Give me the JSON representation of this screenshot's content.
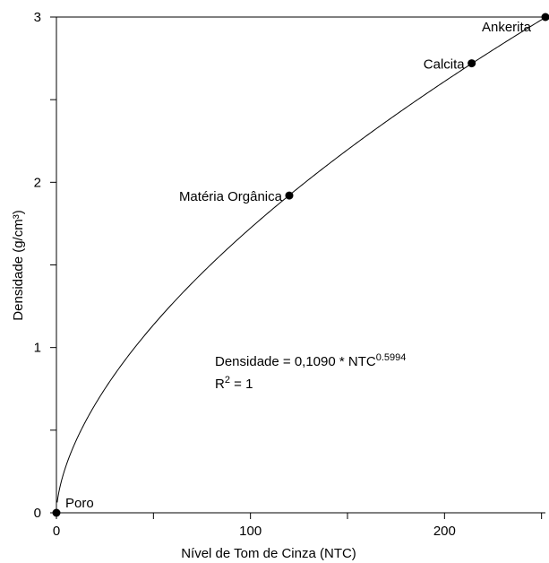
{
  "chart_data": {
    "type": "scatter",
    "xlabel": "Nível de Tom de Cinza (NTC)",
    "ylabel": "Densidade (g/cm³)",
    "xlim": [
      0,
      252
    ],
    "ylim": [
      0,
      3
    ],
    "x_ticks": [
      0,
      100,
      200
    ],
    "x_minor_ticks": [
      50,
      150,
      250
    ],
    "y_ticks": [
      0,
      1,
      2,
      3
    ],
    "y_minor_ticks": [
      0.5,
      1.5,
      2.5
    ],
    "grid": false,
    "points": [
      {
        "label": "Poro",
        "x": 0,
        "y": 0
      },
      {
        "label": "Matéria Orgânica",
        "x": 120,
        "y": 1.92
      },
      {
        "label": "Calcita",
        "x": 214,
        "y": 2.72
      },
      {
        "label": "Ankerita",
        "x": 252,
        "y": 3.0
      }
    ],
    "fit": {
      "coefficient": 0.109,
      "exponent": 0.5994,
      "equation_prefix": "Densidade = 0,1090 * NTC",
      "equation_exponent": "0.5994",
      "r2_prefix": "R",
      "r2_superscript": "2",
      "r2_suffix": " = 1"
    }
  }
}
